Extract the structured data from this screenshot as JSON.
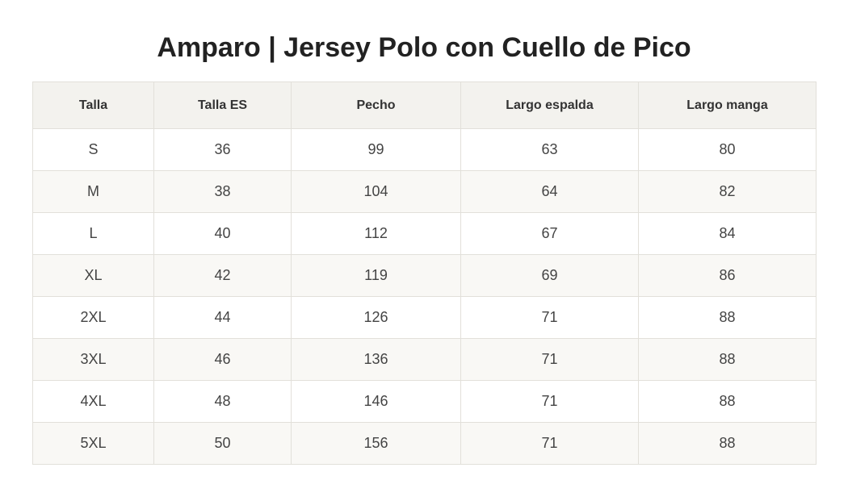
{
  "title": "Amparo | Jersey Polo con Cuello de Pico",
  "table": {
    "headers": [
      "Talla",
      "Talla ES",
      "Pecho",
      "Largo espalda",
      "Largo manga"
    ],
    "rows": [
      [
        "S",
        "36",
        "99",
        "63",
        "80"
      ],
      [
        "M",
        "38",
        "104",
        "64",
        "82"
      ],
      [
        "L",
        "40",
        "112",
        "67",
        "84"
      ],
      [
        "XL",
        "42",
        "119",
        "69",
        "86"
      ],
      [
        "2XL",
        "44",
        "126",
        "71",
        "88"
      ],
      [
        "3XL",
        "46",
        "136",
        "71",
        "88"
      ],
      [
        "4XL",
        "48",
        "146",
        "71",
        "88"
      ],
      [
        "5XL",
        "50",
        "156",
        "71",
        "88"
      ]
    ]
  },
  "colors": {
    "header_bg": "#f3f2ee",
    "row_alt_bg": "#f9f8f5",
    "border": "#e2e0da",
    "title_text": "#222222"
  }
}
